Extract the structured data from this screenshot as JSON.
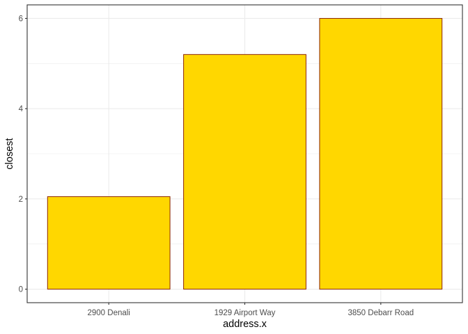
{
  "chart_data": {
    "type": "bar",
    "categories": [
      "2900 Denali",
      "1929 Airport Way",
      "3850 Debarr Road"
    ],
    "values": [
      2.05,
      5.2,
      6.0
    ],
    "xlabel": "address.x",
    "ylabel": "closest",
    "yticks": [
      "0",
      "2",
      "4",
      "6"
    ],
    "ylim": [
      -0.3,
      6.3
    ],
    "grid": true,
    "legend": "none",
    "bar_fill": "#FFD700",
    "bar_outline": "#8B2500",
    "grid_color": "#EBEBEB",
    "panel_border_color": "#333333"
  }
}
